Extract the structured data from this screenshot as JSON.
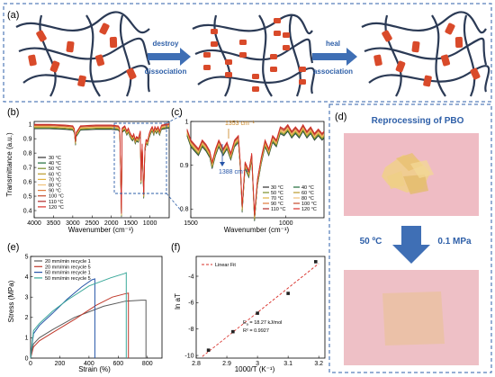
{
  "panel_a": {
    "label": "(a)",
    "arrow1_top": "destroy",
    "arrow1_bottom": "dissociation",
    "arrow2_top": "heal",
    "arrow2_bottom": "association",
    "arrow_color": "#3f6fb5",
    "chain_color": "#2b3a55",
    "crosslink_color": "#d94a2a"
  },
  "panel_d": {
    "label": "(d)",
    "title": "Reprocessing of PBO",
    "temperature": "50 ºC",
    "pressure": "0.1 MPa",
    "border_color": "#2e5fa8"
  },
  "labels": {
    "b": "(b)",
    "c": "(c)",
    "e": "(e)",
    "f": "(f)"
  },
  "chart_data": [
    {
      "id": "b",
      "type": "line",
      "xlabel": "Wavenumber (cm⁻¹)",
      "ylabel": "Transmittance (a.u.)",
      "xlim": [
        4000,
        500
      ],
      "ylim": [
        0.35,
        1.02
      ],
      "xticks": [
        4000,
        3500,
        3000,
        2500,
        2000,
        1500,
        1000
      ],
      "yticks": [
        0.4,
        0.5,
        0.6,
        0.7,
        0.8,
        0.9,
        1.0
      ],
      "series": [
        {
          "name": "30 °C",
          "color": "#2e2e2e"
        },
        {
          "name": "40 °C",
          "color": "#1f6b3a"
        },
        {
          "name": "50 °C",
          "color": "#7a8f2a"
        },
        {
          "name": "60 °C",
          "color": "#b99a2b"
        },
        {
          "name": "70 °C",
          "color": "#e0b341"
        },
        {
          "name": "80 °C",
          "color": "#f0c27a"
        },
        {
          "name": "90 °C",
          "color": "#e07a3a"
        },
        {
          "name": "100 °C",
          "color": "#c44a2a"
        },
        {
          "name": "110 °C",
          "color": "#b02a2a"
        },
        {
          "name": "120 °C",
          "color": "#d9302a"
        }
      ],
      "spectrum": [
        [
          4000,
          0.985
        ],
        [
          3600,
          0.985
        ],
        [
          3200,
          0.98
        ],
        [
          3000,
          0.975
        ],
        [
          2960,
          0.955
        ],
        [
          2930,
          0.87
        ],
        [
          2910,
          0.93
        ],
        [
          2860,
          0.95
        ],
        [
          2800,
          0.975
        ],
        [
          2400,
          0.98
        ],
        [
          2000,
          0.98
        ],
        [
          1820,
          0.975
        ],
        [
          1780,
          0.96
        ],
        [
          1740,
          0.37
        ],
        [
          1720,
          0.96
        ],
        [
          1650,
          0.975
        ],
        [
          1600,
          0.94
        ],
        [
          1560,
          0.96
        ],
        [
          1520,
          0.93
        ],
        [
          1480,
          0.91
        ],
        [
          1450,
          0.9
        ],
        [
          1420,
          0.92
        ],
        [
          1380,
          0.88
        ],
        [
          1350,
          0.9
        ],
        [
          1300,
          0.89
        ],
        [
          1250,
          0.94
        ],
        [
          1230,
          0.6
        ],
        [
          1200,
          0.85
        ],
        [
          1160,
          0.5
        ],
        [
          1130,
          0.82
        ],
        [
          1100,
          0.88
        ],
        [
          1060,
          0.87
        ],
        [
          1020,
          0.92
        ],
        [
          980,
          0.95
        ],
        [
          940,
          0.97
        ],
        [
          900,
          0.94
        ],
        [
          870,
          0.97
        ],
        [
          830,
          0.95
        ],
        [
          790,
          0.97
        ],
        [
          750,
          0.94
        ],
        [
          700,
          0.98
        ],
        [
          600,
          0.985
        ],
        [
          500,
          0.99
        ]
      ]
    },
    {
      "id": "c",
      "type": "line",
      "xlabel": "Wavenumber (cm⁻¹)",
      "xlim": [
        1500,
        800
      ],
      "ylim": [
        0.78,
        1.0
      ],
      "xticks": [
        1500,
        1000
      ],
      "yticks": [
        0.8,
        0.9,
        1.0
      ],
      "annotations": [
        "1353 cm⁻¹",
        "1388 cm⁻¹"
      ],
      "series": [
        {
          "name": "30 °C",
          "color": "#2e2e2e"
        },
        {
          "name": "40 °C",
          "color": "#1f6b3a"
        },
        {
          "name": "50 °C",
          "color": "#7a8f2a"
        },
        {
          "name": "60 °C",
          "color": "#b99a2b"
        },
        {
          "name": "70 °C",
          "color": "#e0b341"
        },
        {
          "name": "80 °C",
          "color": "#f0c27a"
        },
        {
          "name": "90 °C",
          "color": "#e07a3a"
        },
        {
          "name": "100 °C",
          "color": "#c44a2a"
        },
        {
          "name": "110 °C",
          "color": "#b02a2a"
        },
        {
          "name": "120 °C",
          "color": "#d9302a"
        }
      ],
      "spectrum": [
        [
          1520,
          0.975
        ],
        [
          1500,
          0.95
        ],
        [
          1480,
          0.94
        ],
        [
          1460,
          0.93
        ],
        [
          1440,
          0.95
        ],
        [
          1420,
          0.94
        ],
        [
          1400,
          0.925
        ],
        [
          1388,
          0.9
        ],
        [
          1370,
          0.93
        ],
        [
          1353,
          0.95
        ],
        [
          1330,
          0.93
        ],
        [
          1310,
          0.945
        ],
        [
          1290,
          0.92
        ],
        [
          1270,
          0.95
        ],
        [
          1250,
          0.96
        ],
        [
          1240,
          0.9
        ],
        [
          1230,
          0.8
        ],
        [
          1215,
          0.9
        ],
        [
          1195,
          0.88
        ],
        [
          1180,
          0.92
        ],
        [
          1165,
          0.78
        ],
        [
          1150,
          0.86
        ],
        [
          1130,
          0.91
        ],
        [
          1110,
          0.95
        ],
        [
          1090,
          0.93
        ],
        [
          1070,
          0.96
        ],
        [
          1050,
          0.95
        ],
        [
          1030,
          0.98
        ],
        [
          1010,
          0.975
        ],
        [
          990,
          0.985
        ],
        [
          970,
          0.97
        ],
        [
          950,
          0.98
        ],
        [
          930,
          0.97
        ],
        [
          910,
          0.985
        ],
        [
          890,
          0.97
        ],
        [
          870,
          0.98
        ],
        [
          850,
          0.965
        ],
        [
          830,
          0.975
        ],
        [
          810,
          0.965
        ],
        [
          800,
          0.97
        ]
      ]
    },
    {
      "id": "e",
      "type": "line",
      "xlabel": "Strain (%)",
      "ylabel": "Stress (MPa)",
      "xlim": [
        0,
        900
      ],
      "ylim": [
        0,
        5
      ],
      "xticks": [
        0,
        200,
        400,
        600,
        800
      ],
      "yticks": [
        0,
        1,
        2,
        3,
        4,
        5
      ],
      "series": [
        {
          "name": "20 mm/min recycle 1",
          "color": "#5a5a5a",
          "x": [
            0,
            20,
            60,
            150,
            300,
            500,
            650,
            760,
            790,
            790
          ],
          "y": [
            0,
            0.7,
            1.0,
            1.4,
            2.0,
            2.55,
            2.8,
            2.85,
            2.85,
            0
          ]
        },
        {
          "name": "20 mm/min recycle 5",
          "color": "#c0392b",
          "x": [
            0,
            20,
            60,
            150,
            300,
            450,
            560,
            640,
            670,
            670
          ],
          "y": [
            0,
            0.55,
            0.85,
            1.25,
            1.9,
            2.6,
            3.0,
            3.15,
            3.2,
            0
          ]
        },
        {
          "name": "50 mm/min recycle 1",
          "color": "#2554a8",
          "x": [
            0,
            20,
            60,
            150,
            250,
            350,
            420,
            440,
            440
          ],
          "y": [
            0,
            1.2,
            1.6,
            2.2,
            2.9,
            3.5,
            3.85,
            3.9,
            0
          ]
        },
        {
          "name": "50 mm/min recycle 5",
          "color": "#3aa89a",
          "x": [
            0,
            20,
            60,
            150,
            250,
            400,
            550,
            640,
            655,
            655
          ],
          "y": [
            0,
            1.35,
            1.7,
            2.3,
            2.85,
            3.55,
            3.95,
            4.15,
            4.2,
            0
          ]
        }
      ]
    },
    {
      "id": "f",
      "type": "scatter",
      "xlabel": "1000/T (K⁻¹)",
      "ylabel": "ln aT",
      "xlim": [
        2.8,
        3.22
      ],
      "ylim": [
        -10.2,
        -2.5
      ],
      "xticks": [
        2.8,
        2.9,
        3.0,
        3.1,
        3.2
      ],
      "yticks": [
        -10,
        -8,
        -6,
        -4
      ],
      "legend": "Linear Fit",
      "ea_value": "18.27 kJ/mol",
      "r2": "R² = 0.9927",
      "x": [
        2.84,
        2.92,
        3.0,
        3.1,
        3.19
      ],
      "y": [
        -9.6,
        -8.2,
        -6.8,
        -5.3,
        -2.9
      ]
    }
  ]
}
